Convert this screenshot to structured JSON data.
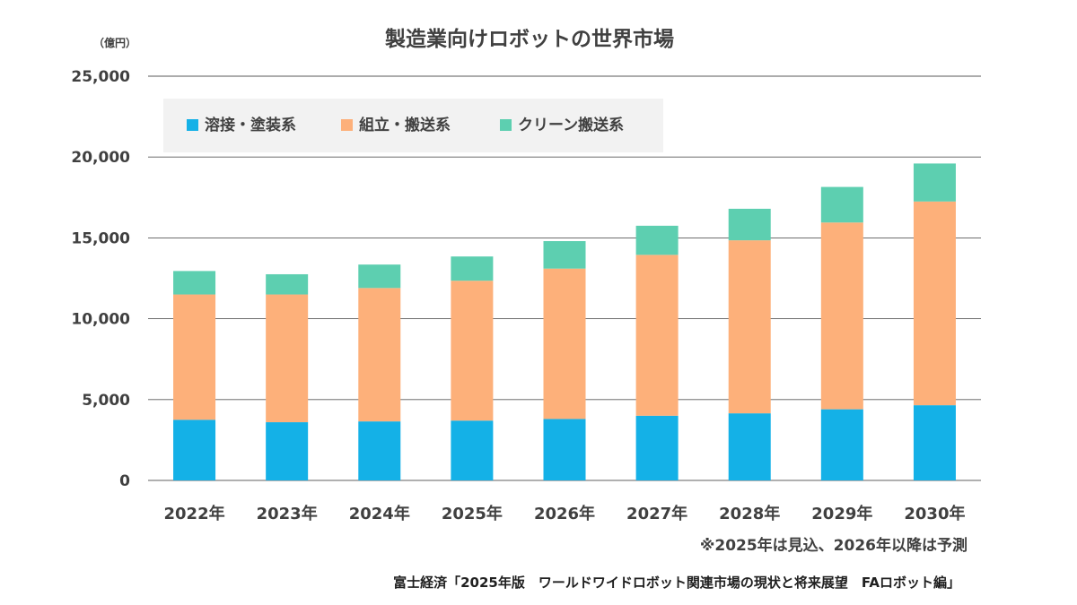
{
  "chart_data": {
    "type": "bar",
    "stacked": true,
    "title": "製造業向けロボットの世界市場",
    "unit_label": "（億円）",
    "categories": [
      "2022年",
      "2023年",
      "2024年",
      "2025年",
      "2026年",
      "2027年",
      "2028年",
      "2029年",
      "2030年"
    ],
    "series": [
      {
        "name": "溶接・塗装系",
        "color": "#14b1e7",
        "values": [
          3750,
          3600,
          3650,
          3700,
          3800,
          4000,
          4150,
          4400,
          4650
        ]
      },
      {
        "name": "組立・搬送系",
        "color": "#fdb07a",
        "values": [
          7750,
          7900,
          8250,
          8650,
          9300,
          9950,
          10700,
          11550,
          12600
        ]
      },
      {
        "name": "クリーン搬送系",
        "color": "#5dcfb0",
        "values": [
          1450,
          1250,
          1450,
          1500,
          1700,
          1800,
          1950,
          2200,
          2350
        ]
      }
    ],
    "ylim": [
      0,
      25000
    ],
    "yticks": [
      0,
      5000,
      10000,
      15000,
      20000,
      25000
    ],
    "ytick_labels": [
      "0",
      "5,000",
      "10,000",
      "15,000",
      "20,000",
      "25,000"
    ],
    "grid": true,
    "legend_position": "top-left"
  },
  "notes": {
    "forecast": "※2025年は見込、2026年以降は予測",
    "source": "富士経済「2025年版　ワールドワイドロボット関連市場の現状と将来展望　FAロボット編」"
  }
}
